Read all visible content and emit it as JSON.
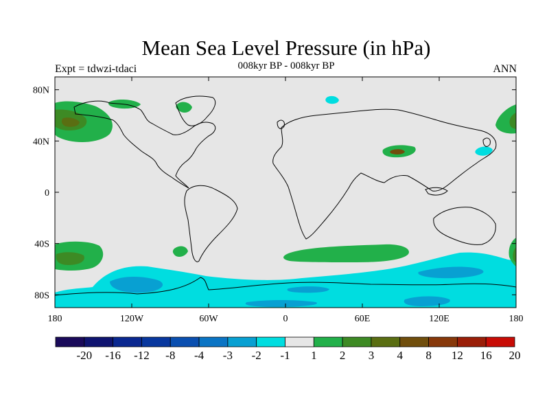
{
  "title": "Mean Sea Level Pressure (in hPa)",
  "left_string": "Expt = tdwzi-tdaci",
  "center_string": "008kyr BP - 008kyr BP",
  "right_string": "ANN",
  "lon_ticks": [
    "180",
    "120W",
    "60W",
    "0",
    "60E",
    "120E",
    "180"
  ],
  "lat_ticks": [
    "80N",
    "40N",
    "0",
    "40S",
    "80S"
  ],
  "colorbar": {
    "colors": [
      "#1a0a5a",
      "#0f1470",
      "#0a2890",
      "#08379e",
      "#0a4fb0",
      "#0a74c4",
      "#08a0d2",
      "#00dde0",
      "#e6e6e6",
      "#22b04a",
      "#3d8a24",
      "#5a6e12",
      "#704e0c",
      "#87380a",
      "#9a1e08",
      "#c80c06"
    ],
    "labels": [
      "-20",
      "-16",
      "-12",
      "-8",
      "-4",
      "-3",
      "-2",
      "-1",
      "1",
      "2",
      "3",
      "4",
      "8",
      "12",
      "16",
      "20"
    ]
  },
  "fill_colors": {
    "neutral": "#e6e6e6",
    "neg_light": "#00dde0",
    "neg_mid": "#08a0d2",
    "neg_dark": "#0a74c4",
    "pos_light": "#22b04a",
    "pos_mid": "#3d8a24",
    "pos_dark": "#5a6e12",
    "pos_darker": "#704e0c"
  }
}
